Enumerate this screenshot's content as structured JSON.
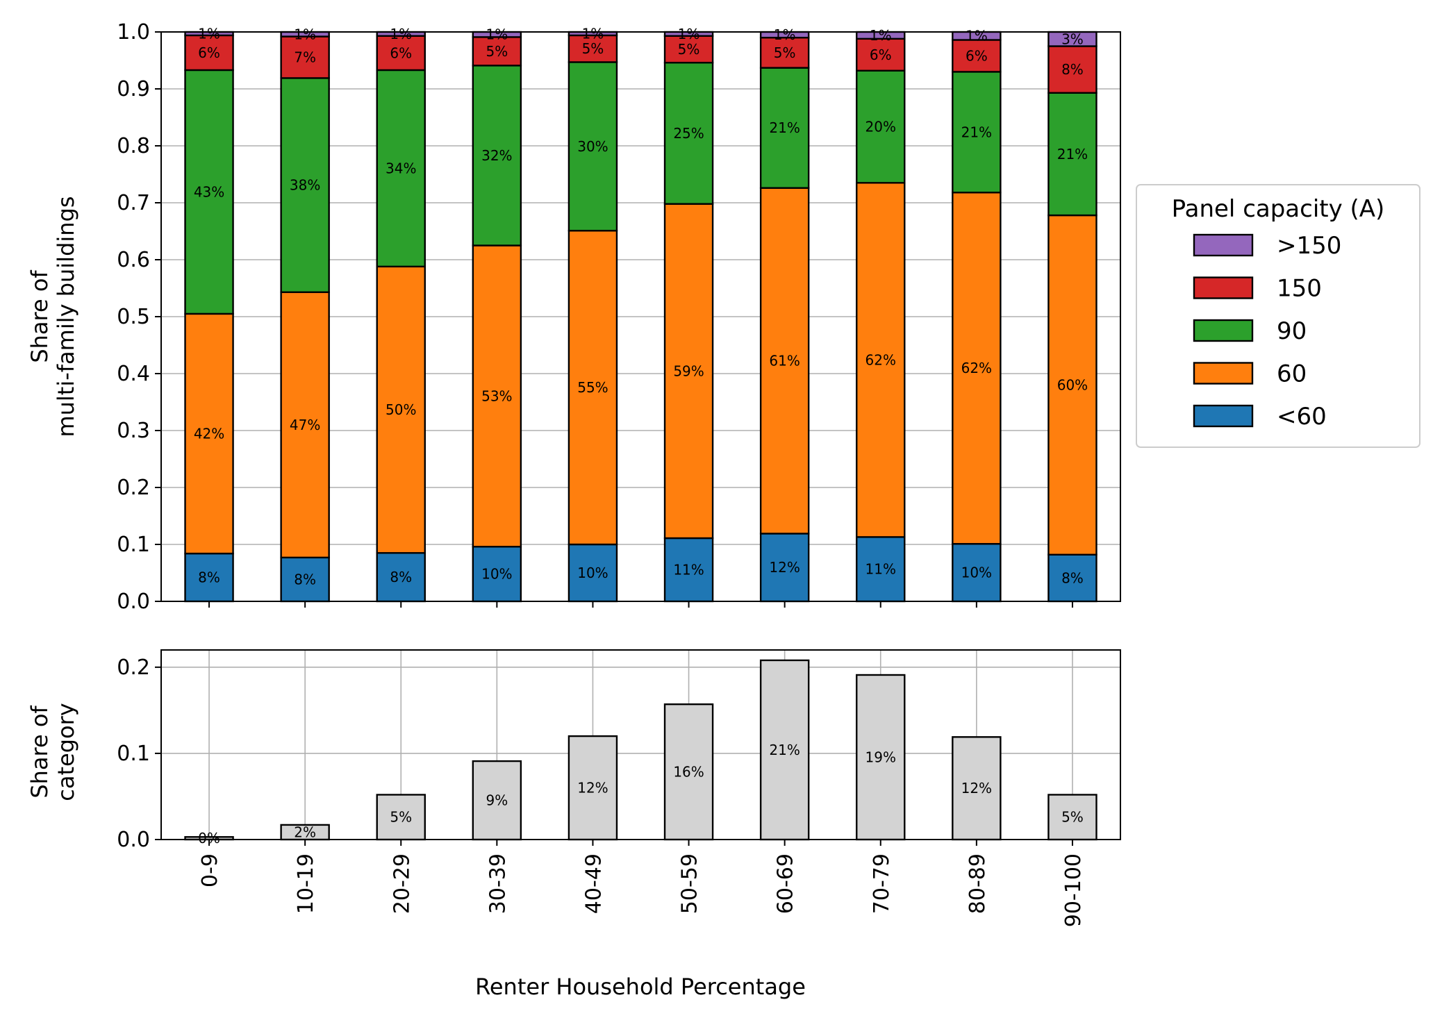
{
  "chart_data": [
    {
      "type": "bar",
      "stacked": true,
      "categories": [
        "0-9",
        "10-19",
        "20-29",
        "30-39",
        "40-49",
        "50-59",
        "60-69",
        "70-79",
        "80-89",
        "90-100"
      ],
      "ylabel": [
        "Share of",
        "multi-family buildings"
      ],
      "ylim": [
        0,
        1.0
      ],
      "yticks": [
        "0.0",
        "0.1",
        "0.2",
        "0.3",
        "0.4",
        "0.5",
        "0.6",
        "0.7",
        "0.8",
        "0.9",
        "1.0"
      ],
      "grid": true,
      "legend": {
        "title": "Panel capacity (A)",
        "placement": "right-outside",
        "order": [
          ">150",
          "150",
          "90",
          "60",
          "<60"
        ]
      },
      "series": [
        {
          "name": "<60",
          "color": "#1f77b4",
          "values": [
            0.084,
            0.077,
            0.085,
            0.096,
            0.1,
            0.111,
            0.119,
            0.113,
            0.101,
            0.082
          ],
          "labels": [
            "8%",
            "8%",
            "8%",
            "10%",
            "10%",
            "11%",
            "12%",
            "11%",
            "10%",
            "8%"
          ]
        },
        {
          "name": "60",
          "color": "#ff7f0e",
          "values": [
            0.421,
            0.466,
            0.503,
            0.529,
            0.551,
            0.587,
            0.607,
            0.622,
            0.617,
            0.596
          ],
          "labels": [
            "42%",
            "47%",
            "50%",
            "53%",
            "55%",
            "59%",
            "61%",
            "62%",
            "62%",
            "60%"
          ]
        },
        {
          "name": "90",
          "color": "#2ca02c",
          "values": [
            0.428,
            0.376,
            0.345,
            0.316,
            0.296,
            0.248,
            0.211,
            0.197,
            0.212,
            0.215
          ],
          "labels": [
            "43%",
            "38%",
            "34%",
            "32%",
            "30%",
            "25%",
            "21%",
            "20%",
            "21%",
            "21%"
          ]
        },
        {
          "name": "150",
          "color": "#d62728",
          "values": [
            0.061,
            0.073,
            0.06,
            0.05,
            0.047,
            0.047,
            0.053,
            0.056,
            0.056,
            0.082
          ],
          "labels": [
            "6%",
            "7%",
            "6%",
            "5%",
            "5%",
            "5%",
            "5%",
            "6%",
            "6%",
            "8%"
          ]
        },
        {
          "name": ">150",
          "color": "#9467bd",
          "values": [
            0.006,
            0.008,
            0.007,
            0.009,
            0.006,
            0.007,
            0.01,
            0.012,
            0.014,
            0.025
          ],
          "labels": [
            "1%",
            "1%",
            "1%",
            "1%",
            "1%",
            "1%",
            "1%",
            "1%",
            "1%",
            "3%"
          ]
        }
      ]
    },
    {
      "type": "bar",
      "categories": [
        "0-9",
        "10-19",
        "20-29",
        "30-39",
        "40-49",
        "50-59",
        "60-69",
        "70-79",
        "80-89",
        "90-100"
      ],
      "values": [
        0.003,
        0.017,
        0.052,
        0.091,
        0.12,
        0.157,
        0.208,
        0.191,
        0.119,
        0.052
      ],
      "labels": [
        "0%",
        "2%",
        "5%",
        "9%",
        "12%",
        "16%",
        "21%",
        "19%",
        "12%",
        "5%"
      ],
      "color": "#d3d3d3",
      "ylabel": [
        "Share of",
        "category"
      ],
      "xlabel": "Renter Household Percentage",
      "ylim": [
        0,
        0.22
      ],
      "yticks": [
        "0.0",
        "0.1",
        "0.2"
      ],
      "grid": true
    }
  ]
}
